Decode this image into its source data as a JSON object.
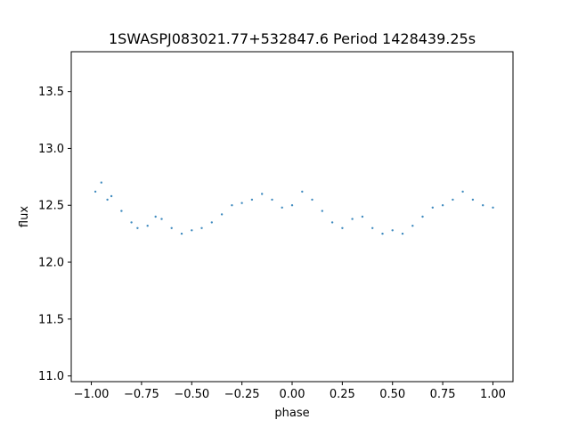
{
  "chart_data": {
    "type": "scatter",
    "title": "1SWASPJ083021.77+532847.6 Period 1428439.25s",
    "xlabel": "phase",
    "ylabel": "flux",
    "xlim": [
      -1.1,
      1.1
    ],
    "ylim": [
      10.95,
      13.85
    ],
    "xticks": [
      {
        "value": -1.0,
        "label": "−1.00"
      },
      {
        "value": -0.75,
        "label": "−0.75"
      },
      {
        "value": -0.5,
        "label": "−0.50"
      },
      {
        "value": -0.25,
        "label": "−0.25"
      },
      {
        "value": 0.0,
        "label": "0.00"
      },
      {
        "value": 0.25,
        "label": "0.25"
      },
      {
        "value": 0.5,
        "label": "0.50"
      },
      {
        "value": 0.75,
        "label": "0.75"
      },
      {
        "value": 1.0,
        "label": "1.00"
      }
    ],
    "yticks": [
      {
        "value": 11.0,
        "label": "11.0"
      },
      {
        "value": 11.5,
        "label": "11.5"
      },
      {
        "value": 12.0,
        "label": "12.0"
      },
      {
        "value": 12.5,
        "label": "12.5"
      },
      {
        "value": 13.0,
        "label": "13.0"
      },
      {
        "value": 13.5,
        "label": "13.5"
      }
    ],
    "grid": false,
    "legend": "none",
    "colors": {
      "points": "#1f77b4"
    },
    "series": [
      {
        "values": [
          [
            -0.98,
            12.62
          ],
          [
            -0.95,
            12.7
          ],
          [
            -0.92,
            12.55
          ],
          [
            -0.9,
            12.58
          ],
          [
            -0.85,
            12.45
          ],
          [
            -0.8,
            12.35
          ],
          [
            -0.77,
            12.3
          ],
          [
            -0.72,
            12.32
          ],
          [
            -0.68,
            12.4
          ],
          [
            -0.65,
            12.38
          ],
          [
            -0.6,
            12.3
          ],
          [
            -0.55,
            12.25
          ],
          [
            -0.5,
            12.28
          ],
          [
            -0.45,
            12.3
          ],
          [
            -0.4,
            12.35
          ],
          [
            -0.35,
            12.42
          ],
          [
            -0.3,
            12.5
          ],
          [
            -0.25,
            12.52
          ],
          [
            -0.2,
            12.55
          ],
          [
            -0.15,
            12.6
          ],
          [
            -0.1,
            12.55
          ],
          [
            -0.05,
            12.48
          ],
          [
            0.0,
            12.5
          ],
          [
            0.05,
            12.62
          ],
          [
            0.1,
            12.55
          ],
          [
            0.15,
            12.45
          ],
          [
            0.2,
            12.35
          ],
          [
            0.25,
            12.3
          ],
          [
            0.3,
            12.38
          ],
          [
            0.35,
            12.4
          ],
          [
            0.4,
            12.3
          ],
          [
            0.45,
            12.25
          ],
          [
            0.5,
            12.28
          ],
          [
            0.55,
            12.25
          ],
          [
            0.6,
            12.32
          ],
          [
            0.65,
            12.4
          ],
          [
            0.7,
            12.48
          ],
          [
            0.75,
            12.5
          ],
          [
            0.8,
            12.55
          ],
          [
            0.85,
            12.62
          ],
          [
            0.9,
            12.55
          ],
          [
            0.95,
            12.5
          ],
          [
            1.0,
            12.48
          ]
        ]
      }
    ]
  }
}
